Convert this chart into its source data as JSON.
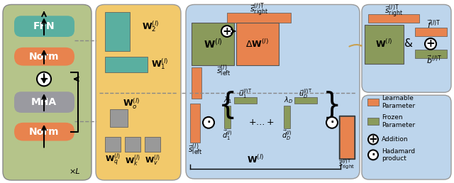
{
  "colors": {
    "teal": "#5AAFA0",
    "orange_learnable": "#E8834E",
    "olive_frozen": "#8A9A5B",
    "gold_bg": "#F0C97A",
    "gold_panel": "#F2C96B",
    "blue_bg": "#C8DCF0",
    "blue_panel": "#BDD5EC",
    "gray_frozen": "#999999",
    "dark_olive": "#6B7A3A",
    "arrow_color": "#222222",
    "text_color": "#111111",
    "white": "#FFFFFF",
    "green_panel_bg": "#B8C88A",
    "delta_w_color": "#C8A050"
  },
  "legend": {
    "learnable_label": "Learnable\nParameter",
    "frozen_label": "Frozen\nParameter",
    "addition_label": "Addition",
    "hadamard_label": "Hadamard\nproduct"
  }
}
